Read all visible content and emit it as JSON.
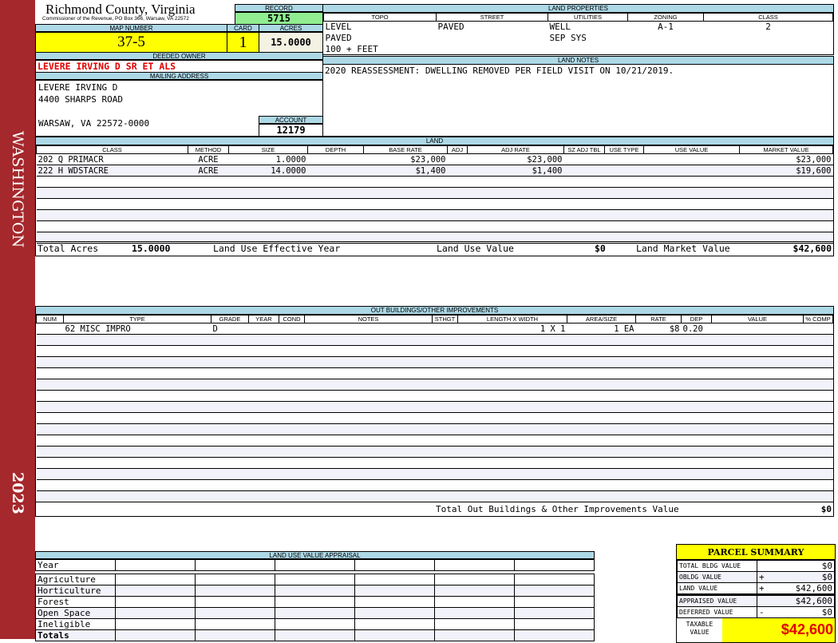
{
  "sidebar": {
    "district": "WASHINGTON",
    "year": "2023",
    "color": "#a5282c"
  },
  "header": {
    "title": "Richmond County, Virginia",
    "subtitle": "Commissioner of the Revenue, PO Box 366, Warsaw, VA 22572",
    "record_label": "RECORD",
    "record": "5715",
    "map_label": "MAP NUMBER",
    "map_number": "37-5",
    "card_label": "CARD",
    "card": "1",
    "acres_label": "ACRES",
    "acres": "15.0000"
  },
  "owner": {
    "deeded_label": "DEEDED OWNER",
    "deeded_owner": "LEVERE IRVING D SR ET ALS",
    "mailing_label": "MAILING ADDRESS",
    "address": [
      "LEVERE IRVING D",
      "4400 SHARPS ROAD",
      "WARSAW, VA 22572-0000"
    ],
    "account_label": "ACCOUNT",
    "account": "12179"
  },
  "land_properties": {
    "title": "LAND PROPERTIES",
    "columns": [
      "TOPO",
      "STREET",
      "UTILITIES",
      "ZONING",
      "CLASS"
    ],
    "rows": [
      [
        "LEVEL",
        "PAVED",
        "WELL",
        "A-1",
        "2"
      ],
      [
        "PAVED",
        "",
        "SEP SYS",
        "",
        ""
      ],
      [
        "100 + FEET",
        "",
        "",
        "",
        ""
      ]
    ]
  },
  "land_notes": {
    "title": "LAND NOTES",
    "text": "2020 REASSESSMENT: DWELLING REMOVED PER FIELD VISIT ON 10/21/2019."
  },
  "land": {
    "title": "LAND",
    "columns": [
      "CLASS",
      "METHOD",
      "SIZE",
      "DEPTH",
      "BASE RATE",
      "ADJ",
      "ADJ RATE",
      "SZ ADJ TBL",
      "USE TYPE",
      "USE VALUE",
      "MARKET VALUE"
    ],
    "rows": [
      [
        "202 Q PRIMACR",
        "ACRE",
        "1.0000",
        "",
        "$23,000",
        "",
        "$23,000",
        "",
        "",
        "",
        "$23,000"
      ],
      [
        "222 H WDSTACRE",
        "ACRE",
        "14.0000",
        "",
        "$1,400",
        "",
        "$1,400",
        "",
        "",
        "",
        "$19,600"
      ]
    ],
    "totals": {
      "acres_label": "Total Acres",
      "acres": "15.0000",
      "effective_year_label": "Land Use Effective Year",
      "use_value_label": "Land Use Value",
      "use_value": "$0",
      "market_value_label": "Land Market Value",
      "market_value": "$42,600"
    }
  },
  "outbuildings": {
    "title": "OUT BUILDINGS/OTHER IMPROVEMENTS",
    "columns": [
      "NUM",
      "TYPE",
      "GRADE",
      "YEAR",
      "COND",
      "NOTES",
      "STHGT",
      "LENGTH X WIDTH",
      "AREA/SIZE",
      "RATE",
      "DEP",
      "VALUE",
      "% COMP"
    ],
    "rows": [
      [
        "",
        "62 MISC IMPRO",
        "D",
        "",
        "",
        "",
        "",
        "1 X 1",
        "1 EA",
        "$8",
        "0.20",
        "",
        ""
      ]
    ],
    "total_label": "Total Out Buildings & Other Improvements Value",
    "total": "$0"
  },
  "land_use": {
    "title": "LAND USE VALUE APPRAISAL",
    "year_label": "Year",
    "rows": [
      "Agriculture",
      "Horticulture",
      "Forest",
      "Open Space",
      "Ineligible"
    ],
    "totals_label": "Totals"
  },
  "parcel_summary": {
    "title": "PARCEL SUMMARY",
    "rows": [
      {
        "label": "TOTAL BLDG VALUE",
        "op": "",
        "value": "$0"
      },
      {
        "label": "OBLDG VALUE",
        "op": "+",
        "value": "$0"
      },
      {
        "label": "LAND VALUE",
        "op": "+",
        "value": "$42,600"
      },
      {
        "label": "APPRAISED VALUE",
        "op": "",
        "value": "$42,600"
      },
      {
        "label": "DEFERRED VALUE",
        "op": "-",
        "value": "$0"
      }
    ],
    "taxable_label": "TAXABLE VALUE",
    "taxable": "$42,600"
  }
}
